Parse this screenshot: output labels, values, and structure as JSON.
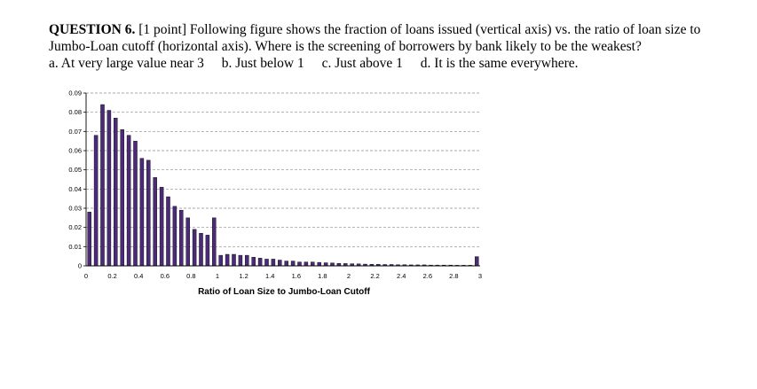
{
  "question": {
    "number": "QUESTION 6.",
    "text": "[1 point] Following figure shows the fraction of loans issued (vertical axis) vs. the ratio of loan size to Jumbo-Loan cutoff (horizontal axis). Where is the screening of borrowers by bank likely to be the weakest?",
    "options": [
      "a. At very large value near 3",
      "b. Just below 1",
      "c. Just above 1",
      "d. It is the same everywhere."
    ]
  },
  "colors": {
    "bar_fill": "#4b2a78",
    "bar_stroke": "#000000",
    "grid": "#8c8c8c"
  },
  "chart_data": {
    "type": "bar",
    "title": "",
    "xlabel": "Ratio of Loan Size to Jumbo-Loan Cutoff",
    "ylabel": "",
    "xlim": [
      0,
      3
    ],
    "ylim": [
      0,
      0.09
    ],
    "x_ticks": [
      "0",
      "0.2",
      "0.4",
      "0.6",
      "0.8",
      "1",
      "1.2",
      "1.4",
      "1.6",
      "1.8",
      "2",
      "2.2",
      "2.4",
      "2.6",
      "2.8",
      "3"
    ],
    "y_ticks": [
      "0",
      "0.01",
      "0.02",
      "0.03",
      "0.04",
      "0.05",
      "0.06",
      "0.07",
      "0.08",
      "0.09"
    ],
    "grid": "horizontal dashed",
    "x": [
      0.05,
      0.1,
      0.15,
      0.2,
      0.25,
      0.3,
      0.35,
      0.4,
      0.45,
      0.5,
      0.55,
      0.6,
      0.65,
      0.7,
      0.75,
      0.8,
      0.85,
      0.9,
      0.95,
      1.0,
      1.05,
      1.1,
      1.15,
      1.2,
      1.25,
      1.3,
      1.35,
      1.4,
      1.45,
      1.5,
      1.55,
      1.6,
      1.65,
      1.7,
      1.75,
      1.8,
      1.85,
      1.9,
      1.95,
      2.0,
      2.05,
      2.1,
      2.15,
      2.2,
      2.25,
      2.3,
      2.35,
      2.4,
      2.45,
      2.5,
      2.55,
      2.6,
      2.65,
      2.7,
      2.75,
      2.8,
      2.85,
      2.9,
      2.95,
      3.0
    ],
    "values": [
      0.028,
      0.068,
      0.084,
      0.081,
      0.077,
      0.071,
      0.068,
      0.065,
      0.056,
      0.055,
      0.046,
      0.041,
      0.036,
      0.031,
      0.029,
      0.025,
      0.019,
      0.017,
      0.016,
      0.025,
      0.0055,
      0.006,
      0.006,
      0.0055,
      0.0055,
      0.0045,
      0.004,
      0.0035,
      0.0035,
      0.003,
      0.0025,
      0.0025,
      0.002,
      0.002,
      0.002,
      0.0018,
      0.0016,
      0.0015,
      0.0013,
      0.0012,
      0.0011,
      0.001,
      0.0009,
      0.0008,
      0.0008,
      0.0007,
      0.0007,
      0.0006,
      0.0006,
      0.0005,
      0.0005,
      0.0005,
      0.0004,
      0.0004,
      0.0004,
      0.0004,
      0.0003,
      0.0003,
      0.0003,
      0.0048
    ]
  }
}
